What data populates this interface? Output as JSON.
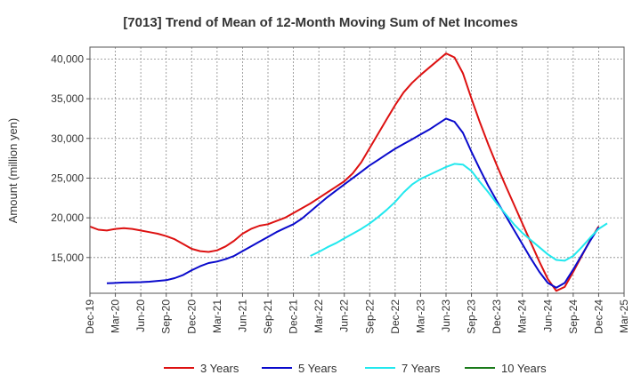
{
  "chart_data": {
    "type": "line",
    "title": "[7013]  Trend of Mean of 12-Month Moving Sum of Net Incomes",
    "xlabel": "",
    "ylabel": "Amount (million yen)",
    "x_ticks": [
      "Dec-19",
      "Mar-20",
      "Jun-20",
      "Sep-20",
      "Dec-20",
      "Mar-21",
      "Jun-21",
      "Sep-21",
      "Dec-21",
      "Mar-22",
      "Jun-22",
      "Sep-22",
      "Dec-22",
      "Mar-23",
      "Jun-23",
      "Sep-23",
      "Dec-23",
      "Mar-24",
      "Jun-24",
      "Sep-24",
      "Dec-24",
      "Mar-25"
    ],
    "y_ticks": [
      15000,
      20000,
      25000,
      30000,
      35000,
      40000
    ],
    "y_tick_labels": [
      "15,000",
      "20,000",
      "25,000",
      "30,000",
      "35,000",
      "40,000"
    ],
    "ylim": [
      10500,
      41500
    ],
    "grid": true,
    "legend_position": "bottom",
    "series": [
      {
        "name": "3 Years",
        "color": "#dd1111",
        "values": [
          [
            "2019-12",
            18900
          ],
          [
            "2020-01",
            18500
          ],
          [
            "2020-02",
            18400
          ],
          [
            "2020-03",
            18600
          ],
          [
            "2020-04",
            18700
          ],
          [
            "2020-05",
            18600
          ],
          [
            "2020-06",
            18400
          ],
          [
            "2020-07",
            18200
          ],
          [
            "2020-08",
            18000
          ],
          [
            "2020-09",
            17700
          ],
          [
            "2020-10",
            17300
          ],
          [
            "2020-11",
            16700
          ],
          [
            "2020-12",
            16100
          ],
          [
            "2021-01",
            15800
          ],
          [
            "2021-02",
            15700
          ],
          [
            "2021-03",
            15900
          ],
          [
            "2021-04",
            16400
          ],
          [
            "2021-05",
            17100
          ],
          [
            "2021-06",
            18000
          ],
          [
            "2021-07",
            18600
          ],
          [
            "2021-08",
            19000
          ],
          [
            "2021-09",
            19200
          ],
          [
            "2021-10",
            19600
          ],
          [
            "2021-11",
            20000
          ],
          [
            "2021-12",
            20600
          ],
          [
            "2022-01",
            21200
          ],
          [
            "2022-02",
            21800
          ],
          [
            "2022-03",
            22500
          ],
          [
            "2022-04",
            23200
          ],
          [
            "2022-05",
            23900
          ],
          [
            "2022-06",
            24600
          ],
          [
            "2022-07",
            25600
          ],
          [
            "2022-08",
            27000
          ],
          [
            "2022-09",
            28800
          ],
          [
            "2022-10",
            30600
          ],
          [
            "2022-11",
            32400
          ],
          [
            "2022-12",
            34200
          ],
          [
            "2023-01",
            35800
          ],
          [
            "2023-02",
            37000
          ],
          [
            "2023-03",
            38000
          ],
          [
            "2023-04",
            38900
          ],
          [
            "2023-05",
            39800
          ],
          [
            "2023-06",
            40700
          ],
          [
            "2023-07",
            40200
          ],
          [
            "2023-08",
            38200
          ],
          [
            "2023-09",
            35000
          ],
          [
            "2023-10",
            32000
          ],
          [
            "2023-11",
            29200
          ],
          [
            "2023-12",
            26600
          ],
          [
            "2024-01",
            24100
          ],
          [
            "2024-02",
            21700
          ],
          [
            "2024-03",
            19300
          ],
          [
            "2024-04",
            16900
          ],
          [
            "2024-05",
            14500
          ],
          [
            "2024-06",
            12300
          ],
          [
            "2024-07",
            10800
          ],
          [
            "2024-08",
            11300
          ],
          [
            "2024-09",
            13200
          ],
          [
            "2024-10",
            15200
          ],
          [
            "2024-11",
            17200
          ],
          [
            "2024-12",
            18900
          ]
        ]
      },
      {
        "name": "5 Years",
        "color": "#0a0acc",
        "values": [
          [
            "2020-02",
            11750
          ],
          [
            "2020-03",
            11800
          ],
          [
            "2020-04",
            11850
          ],
          [
            "2020-05",
            11880
          ],
          [
            "2020-06",
            11900
          ],
          [
            "2020-07",
            11950
          ],
          [
            "2020-08",
            12050
          ],
          [
            "2020-09",
            12150
          ],
          [
            "2020-10",
            12400
          ],
          [
            "2020-11",
            12800
          ],
          [
            "2020-12",
            13400
          ],
          [
            "2021-01",
            13900
          ],
          [
            "2021-02",
            14300
          ],
          [
            "2021-03",
            14500
          ],
          [
            "2021-04",
            14800
          ],
          [
            "2021-05",
            15200
          ],
          [
            "2021-06",
            15800
          ],
          [
            "2021-07",
            16400
          ],
          [
            "2021-08",
            17000
          ],
          [
            "2021-09",
            17600
          ],
          [
            "2021-10",
            18200
          ],
          [
            "2021-11",
            18700
          ],
          [
            "2021-12",
            19200
          ],
          [
            "2022-01",
            19900
          ],
          [
            "2022-02",
            20800
          ],
          [
            "2022-03",
            21700
          ],
          [
            "2022-04",
            22600
          ],
          [
            "2022-05",
            23400
          ],
          [
            "2022-06",
            24200
          ],
          [
            "2022-07",
            25000
          ],
          [
            "2022-08",
            25800
          ],
          [
            "2022-09",
            26600
          ],
          [
            "2022-10",
            27300
          ],
          [
            "2022-11",
            28000
          ],
          [
            "2022-12",
            28700
          ],
          [
            "2023-01",
            29300
          ],
          [
            "2023-02",
            29900
          ],
          [
            "2023-03",
            30500
          ],
          [
            "2023-04",
            31100
          ],
          [
            "2023-05",
            31800
          ],
          [
            "2023-06",
            32500
          ],
          [
            "2023-07",
            32100
          ],
          [
            "2023-08",
            30700
          ],
          [
            "2023-09",
            28300
          ],
          [
            "2023-10",
            26100
          ],
          [
            "2023-11",
            24000
          ],
          [
            "2023-12",
            22100
          ],
          [
            "2024-01",
            20300
          ],
          [
            "2024-02",
            18500
          ],
          [
            "2024-03",
            16700
          ],
          [
            "2024-04",
            14900
          ],
          [
            "2024-05",
            13200
          ],
          [
            "2024-06",
            11800
          ],
          [
            "2024-07",
            11200
          ],
          [
            "2024-08",
            11800
          ],
          [
            "2024-09",
            13500
          ],
          [
            "2024-10",
            15300
          ],
          [
            "2024-11",
            17100
          ],
          [
            "2024-12",
            18800
          ]
        ]
      },
      {
        "name": "7 Years",
        "color": "#22e8ee",
        "values": [
          [
            "2022-02",
            15200
          ],
          [
            "2022-03",
            15700
          ],
          [
            "2022-04",
            16300
          ],
          [
            "2022-05",
            16800
          ],
          [
            "2022-06",
            17400
          ],
          [
            "2022-07",
            18000
          ],
          [
            "2022-08",
            18600
          ],
          [
            "2022-09",
            19300
          ],
          [
            "2022-10",
            20100
          ],
          [
            "2022-11",
            21000
          ],
          [
            "2022-12",
            22000
          ],
          [
            "2023-01",
            23200
          ],
          [
            "2023-02",
            24200
          ],
          [
            "2023-03",
            24900
          ],
          [
            "2023-04",
            25400
          ],
          [
            "2023-05",
            25900
          ],
          [
            "2023-06",
            26400
          ],
          [
            "2023-07",
            26800
          ],
          [
            "2023-08",
            26700
          ],
          [
            "2023-09",
            25900
          ],
          [
            "2023-10",
            24500
          ],
          [
            "2023-11",
            23200
          ],
          [
            "2023-12",
            21800
          ],
          [
            "2024-01",
            20500
          ],
          [
            "2024-02",
            19200
          ],
          [
            "2024-03",
            18100
          ],
          [
            "2024-04",
            17200
          ],
          [
            "2024-05",
            16300
          ],
          [
            "2024-06",
            15400
          ],
          [
            "2024-07",
            14700
          ],
          [
            "2024-08",
            14600
          ],
          [
            "2024-09",
            15200
          ],
          [
            "2024-10",
            16300
          ],
          [
            "2024-11",
            17500
          ],
          [
            "2024-12",
            18600
          ],
          [
            "2025-01",
            19300
          ]
        ]
      },
      {
        "name": "10 Years",
        "color": "#1a7a1a",
        "values": []
      }
    ]
  }
}
